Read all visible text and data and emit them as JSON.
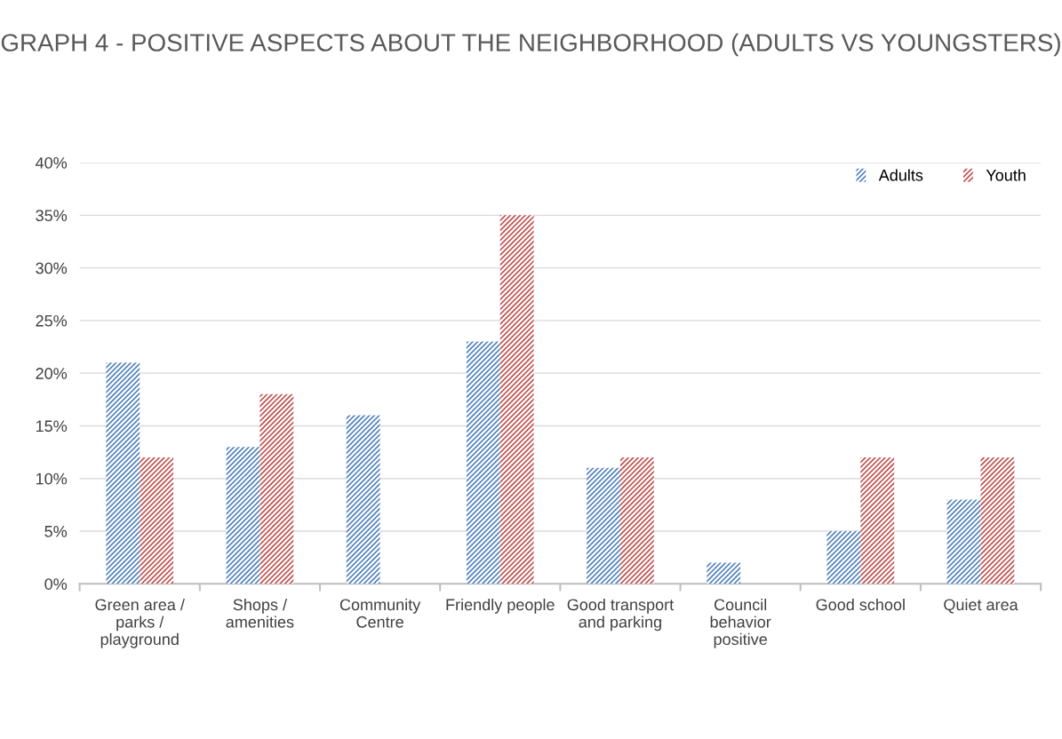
{
  "chart_data": {
    "type": "bar",
    "title": "GRAPH 4 - POSITIVE ASPECTS ABOUT THE NEIGHBORHOOD (ADULTS VS YOUNGSTERS)",
    "categories": [
      "Green area / parks / playground",
      "Shops / amenities",
      "Community Centre",
      "Friendly people",
      "Good transport and parking",
      "Council behavior positive",
      "Good school",
      "Quiet area"
    ],
    "series": [
      {
        "name": "Adults",
        "color": "#4f81bd",
        "values": [
          21,
          13,
          16,
          23,
          11,
          2,
          5,
          8
        ]
      },
      {
        "name": "Youth",
        "color": "#c0504d",
        "values": [
          12,
          18,
          0,
          35,
          12,
          0,
          12,
          12
        ]
      }
    ],
    "ylim": [
      0,
      40
    ],
    "yticks": [
      {
        "value": 0,
        "label": "0%"
      },
      {
        "value": 5,
        "label": "5%"
      },
      {
        "value": 10,
        "label": "10%"
      },
      {
        "value": 15,
        "label": "15%"
      },
      {
        "value": 20,
        "label": "20%"
      },
      {
        "value": 25,
        "label": "25%"
      },
      {
        "value": 30,
        "label": "30%"
      },
      {
        "value": 35,
        "label": "35%"
      },
      {
        "value": 40,
        "label": "40%"
      }
    ],
    "grid": "y",
    "legend": "top right"
  }
}
